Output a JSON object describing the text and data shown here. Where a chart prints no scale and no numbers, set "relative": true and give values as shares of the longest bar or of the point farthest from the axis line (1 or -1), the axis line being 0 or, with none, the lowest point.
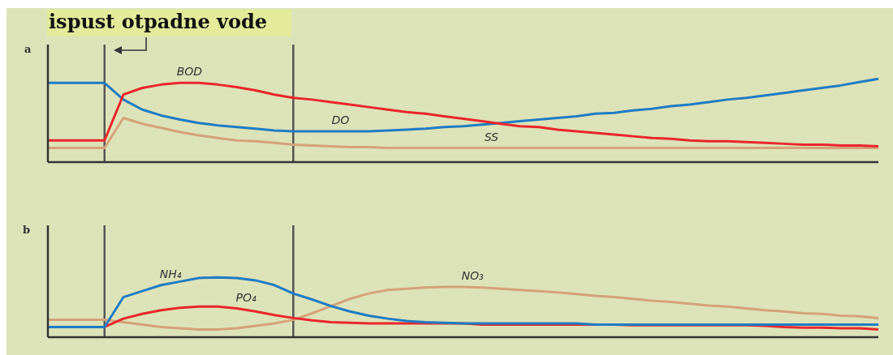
{
  "chart_data": [
    {
      "type": "line",
      "title": "a",
      "annotations": [
        "ispust otpadne vode"
      ],
      "relative": true,
      "legend": false,
      "grid": false,
      "marker": "none",
      "categories": [
        null,
        null,
        null,
        null,
        null,
        null,
        null,
        null,
        null,
        null,
        null,
        null,
        null,
        null,
        null,
        null,
        null,
        null,
        null,
        null,
        null,
        null,
        null,
        null,
        null,
        null,
        null,
        null,
        null,
        null,
        null,
        null,
        null,
        null,
        null,
        null,
        null,
        null,
        null,
        null,
        null,
        null,
        null,
        null,
        null
      ],
      "series": [
        {
          "name": "BOD",
          "color": "#e8262c",
          "values": [
            0.26,
            0.26,
            0.26,
            0.26,
            0.81,
            0.89,
            0.93,
            0.95,
            0.95,
            0.93,
            0.9,
            0.86,
            0.81,
            0.77,
            0.75,
            0.72,
            0.69,
            0.66,
            0.63,
            0.6,
            0.58,
            0.55,
            0.52,
            0.49,
            0.46,
            0.43,
            0.42,
            0.39,
            0.37,
            0.35,
            0.33,
            0.31,
            0.29,
            0.28,
            0.26,
            0.25,
            0.25,
            0.24,
            0.23,
            0.22,
            0.21,
            0.21,
            0.2,
            0.2,
            0.19
          ]
        },
        {
          "name": "DO",
          "color": "#1f7bc4",
          "values": [
            0.95,
            0.95,
            0.95,
            0.95,
            0.75,
            0.63,
            0.56,
            0.51,
            0.47,
            0.44,
            0.42,
            0.4,
            0.38,
            0.37,
            0.37,
            0.37,
            0.37,
            0.37,
            0.38,
            0.39,
            0.4,
            0.42,
            0.43,
            0.45,
            0.47,
            0.49,
            0.51,
            0.53,
            0.55,
            0.58,
            0.59,
            0.62,
            0.64,
            0.67,
            0.69,
            0.72,
            0.75,
            0.77,
            0.8,
            0.83,
            0.86,
            0.89,
            0.92,
            0.96,
            1
          ]
        },
        {
          "name": "SS",
          "color": "#d4a27a",
          "values": [
            0.17,
            0.17,
            0.17,
            0.17,
            0.53,
            0.46,
            0.41,
            0.36,
            0.32,
            0.29,
            0.26,
            0.25,
            0.23,
            0.21,
            0.2,
            0.19,
            0.18,
            0.18,
            0.17,
            0.17,
            0.17,
            0.17,
            0.17,
            0.17,
            0.17,
            0.17,
            0.17,
            0.17,
            0.17,
            0.17,
            0.17,
            0.17,
            0.17,
            0.17,
            0.17,
            0.17,
            0.17,
            0.17,
            0.17,
            0.17,
            0.17,
            0.17,
            0.17,
            0.17,
            0.17
          ]
        }
      ]
    },
    {
      "type": "line",
      "title": "b",
      "relative": true,
      "legend": false,
      "grid": false,
      "marker": "none",
      "categories": [
        null,
        null,
        null,
        null,
        null,
        null,
        null,
        null,
        null,
        null,
        null,
        null,
        null,
        null,
        null,
        null,
        null,
        null,
        null,
        null,
        null,
        null,
        null,
        null,
        null,
        null,
        null,
        null,
        null,
        null,
        null,
        null,
        null,
        null,
        null,
        null,
        null,
        null,
        null,
        null,
        null,
        null,
        null,
        null,
        null
      ],
      "series": [
        {
          "name": "NH₄",
          "color": "#1f7bc4",
          "values": [
            0.17,
            0.17,
            0.17,
            0.17,
            0.67,
            0.77,
            0.87,
            0.93,
            0.99,
            1,
            0.99,
            0.95,
            0.87,
            0.73,
            0.63,
            0.52,
            0.43,
            0.36,
            0.31,
            0.27,
            0.25,
            0.24,
            0.23,
            0.23,
            0.23,
            0.23,
            0.23,
            0.23,
            0.23,
            0.21,
            0.21,
            0.21,
            0.21,
            0.21,
            0.21,
            0.21,
            0.21,
            0.21,
            0.21,
            0.21,
            0.21,
            0.21,
            0.21,
            0.21,
            0.21
          ]
        },
        {
          "name": "PO₄",
          "color": "#e8262c",
          "values": [
            null,
            null,
            null,
            0.17,
            0.31,
            0.39,
            0.45,
            0.49,
            0.51,
            0.51,
            0.48,
            0.43,
            0.37,
            0.32,
            0.28,
            0.25,
            0.24,
            0.23,
            0.23,
            0.23,
            0.23,
            0.23,
            0.23,
            0.21,
            0.21,
            0.21,
            0.21,
            0.21,
            0.21,
            0.21,
            0.21,
            0.2,
            0.2,
            0.2,
            0.2,
            0.2,
            0.2,
            0.2,
            0.19,
            0.17,
            0.16,
            0.16,
            0.15,
            0.15,
            0.13
          ]
        },
        {
          "name": "NO₃",
          "color": "#d4a27a",
          "values": [
            0.29,
            0.29,
            0.29,
            0.29,
            0.25,
            0.21,
            0.17,
            0.15,
            0.13,
            0.13,
            0.15,
            0.19,
            0.23,
            0.29,
            0.4,
            0.52,
            0.64,
            0.73,
            0.79,
            0.81,
            0.83,
            0.84,
            0.84,
            0.83,
            0.81,
            0.79,
            0.77,
            0.75,
            0.72,
            0.69,
            0.67,
            0.64,
            0.61,
            0.59,
            0.56,
            0.53,
            0.51,
            0.48,
            0.45,
            0.43,
            0.4,
            0.39,
            0.36,
            0.35,
            0.32
          ]
        }
      ]
    }
  ]
}
